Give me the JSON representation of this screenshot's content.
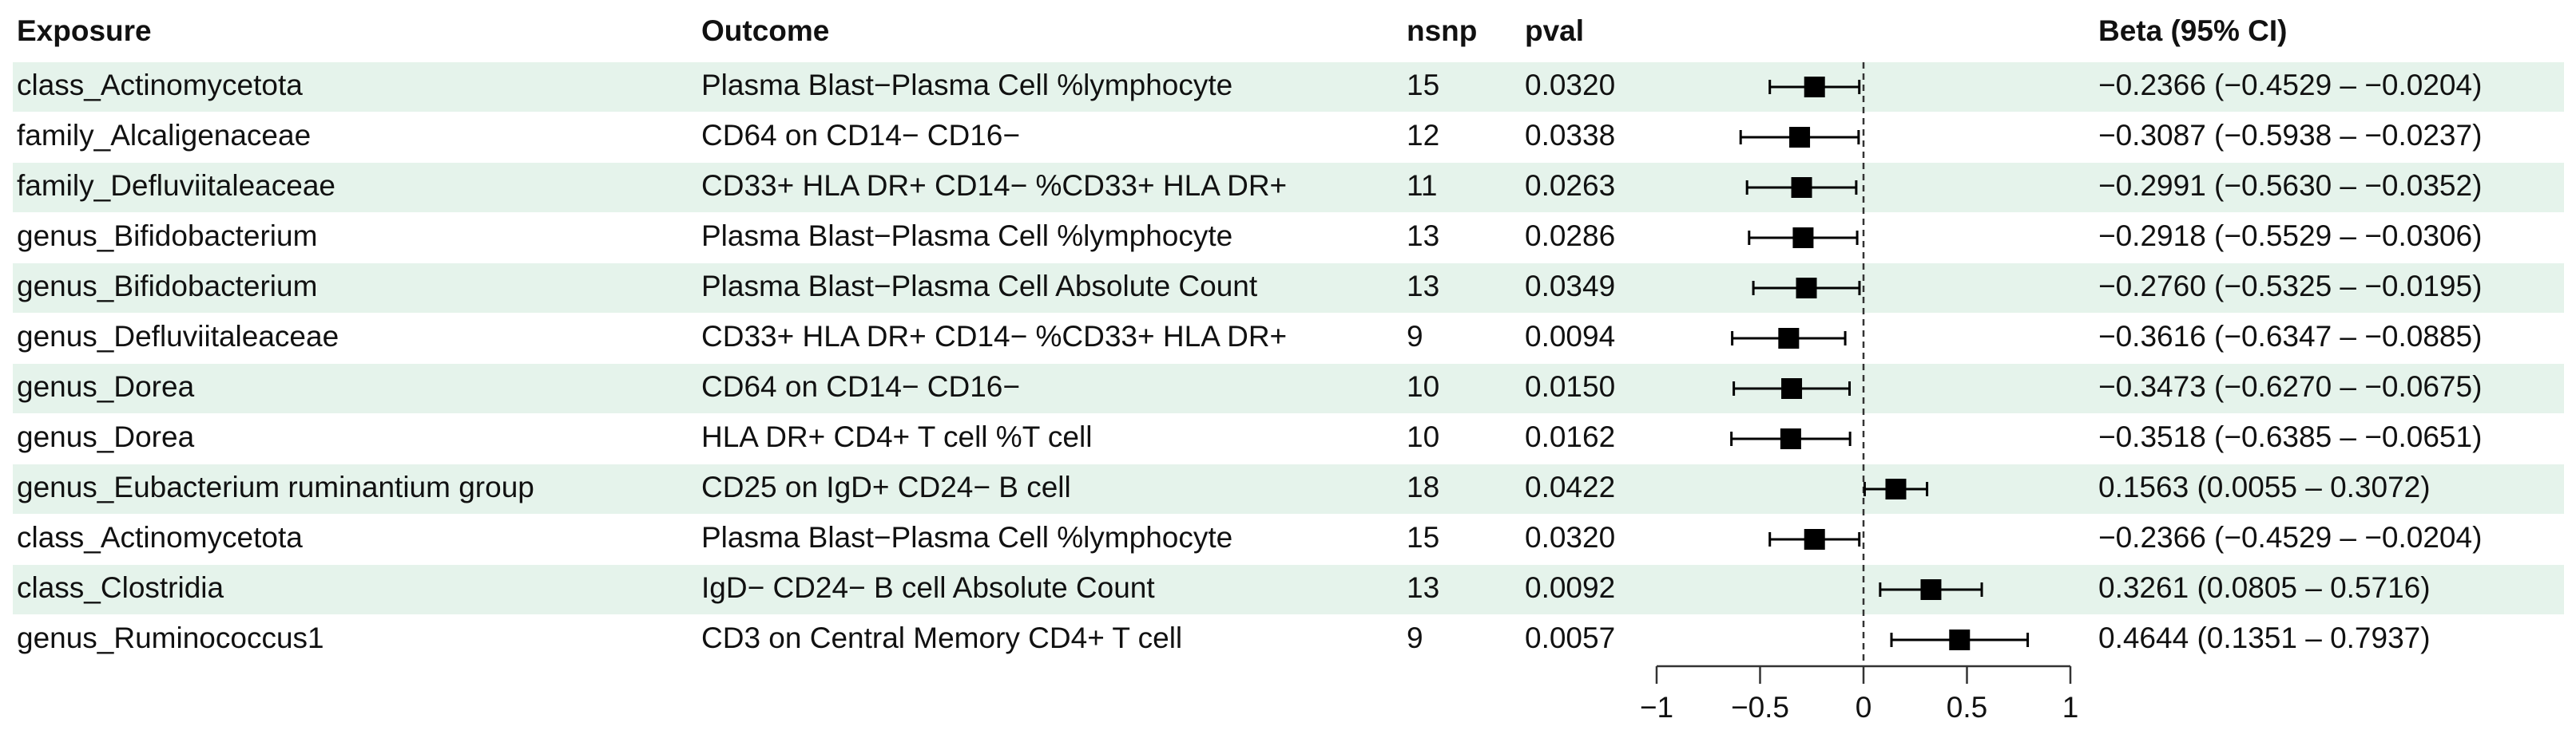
{
  "chart_data": {
    "type": "forest",
    "columns": [
      "Exposure",
      "Outcome",
      "nsnp",
      "pval",
      "Beta (95% CI)"
    ],
    "exposure": [
      "class_Actinomycetota",
      "family_Alcaligenaceae",
      "family_Defluviitaleaceae",
      "genus_Bifidobacterium",
      "genus_Bifidobacterium",
      "genus_Defluviitaleaceae",
      "genus_Dorea",
      "genus_Dorea",
      "genus_Eubacterium ruminantium group",
      "class_Actinomycetota",
      "class_Clostridia",
      "genus_Ruminococcus1"
    ],
    "outcome": [
      "Plasma Blast−Plasma Cell %lymphocyte",
      "CD64 on CD14− CD16−",
      "CD33+ HLA DR+ CD14− %CD33+ HLA DR+",
      "Plasma Blast−Plasma Cell %lymphocyte",
      "Plasma Blast−Plasma Cell Absolute Count",
      "CD33+ HLA DR+ CD14− %CD33+ HLA DR+",
      "CD64 on CD14− CD16−",
      "HLA DR+ CD4+ T cell %T cell",
      "CD25 on IgD+ CD24− B cell",
      "Plasma Blast−Plasma Cell %lymphocyte",
      "IgD− CD24− B cell Absolute Count",
      "CD3 on Central Memory CD4+ T cell"
    ],
    "nsnp": [
      15,
      12,
      11,
      13,
      13,
      9,
      10,
      10,
      18,
      15,
      13,
      9
    ],
    "pval": [
      "0.0320",
      "0.0338",
      "0.0263",
      "0.0286",
      "0.0349",
      "0.0094",
      "0.0150",
      "0.0162",
      "0.0422",
      "0.0320",
      "0.0092",
      "0.0057"
    ],
    "values": [
      -0.2366,
      -0.3087,
      -0.2991,
      -0.2918,
      -0.276,
      -0.3616,
      -0.3473,
      -0.3518,
      0.1563,
      -0.2366,
      0.3261,
      0.4644
    ],
    "lower": [
      -0.4529,
      -0.5938,
      -0.563,
      -0.5529,
      -0.5325,
      -0.6347,
      -0.627,
      -0.6385,
      0.0055,
      -0.4529,
      0.0805,
      0.1351
    ],
    "upper": [
      -0.0204,
      -0.0237,
      -0.0352,
      -0.0306,
      -0.0195,
      -0.0885,
      -0.0675,
      -0.0651,
      0.3072,
      -0.0204,
      0.5716,
      0.7937
    ],
    "value_labels": [
      "−0.2366 (−0.4529 – −0.0204)",
      "−0.3087 (−0.5938 – −0.0237)",
      "−0.2991 (−0.5630 – −0.0352)",
      "−0.2918 (−0.5529 – −0.0306)",
      "−0.2760 (−0.5325 – −0.0195)",
      "−0.3616 (−0.6347 – −0.0885)",
      "−0.3473 (−0.6270 – −0.0675)",
      "−0.3518 (−0.6385 – −0.0651)",
      "0.1563 (0.0055 – 0.3072)",
      "−0.2366 (−0.4529 – −0.0204)",
      "0.3261 (0.0805 – 0.5716)",
      "0.4644 (0.1351 – 0.7937)"
    ],
    "xlim": [
      -1,
      1
    ],
    "xticks": [
      {
        "value": -1,
        "label": "−1"
      },
      {
        "value": -0.5,
        "label": "−0.5"
      },
      0,
      0.5,
      1
    ],
    "reference_line": 0,
    "color": "#000000",
    "band_color": "#e5f3eb"
  }
}
